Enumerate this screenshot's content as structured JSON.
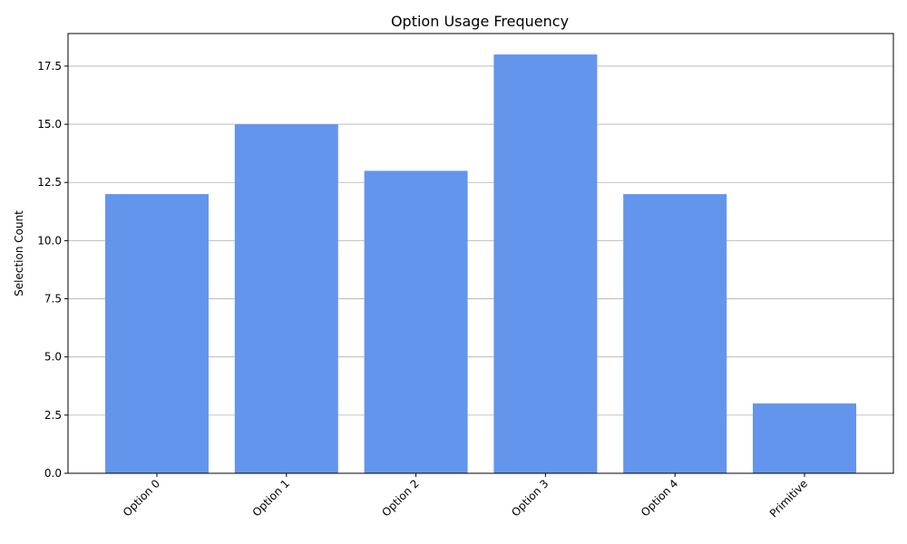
{
  "chart_data": {
    "type": "bar",
    "title": "Option Usage Frequency",
    "xlabel": "",
    "ylabel": "Selection Count",
    "categories": [
      "Option 0",
      "Option 1",
      "Option 2",
      "Option 3",
      "Option 4",
      "Primitive"
    ],
    "values": [
      12,
      15,
      13,
      18,
      12,
      3
    ],
    "ylim": [
      0,
      18.9
    ],
    "yticks": [
      "0.0",
      "2.5",
      "5.0",
      "7.5",
      "10.0",
      "12.5",
      "15.0",
      "17.5"
    ],
    "grid": "y-major",
    "bar_color": "#6495ed",
    "grid_color": "#b0b0b0",
    "xtick_rotation": 45,
    "legend": "none"
  }
}
